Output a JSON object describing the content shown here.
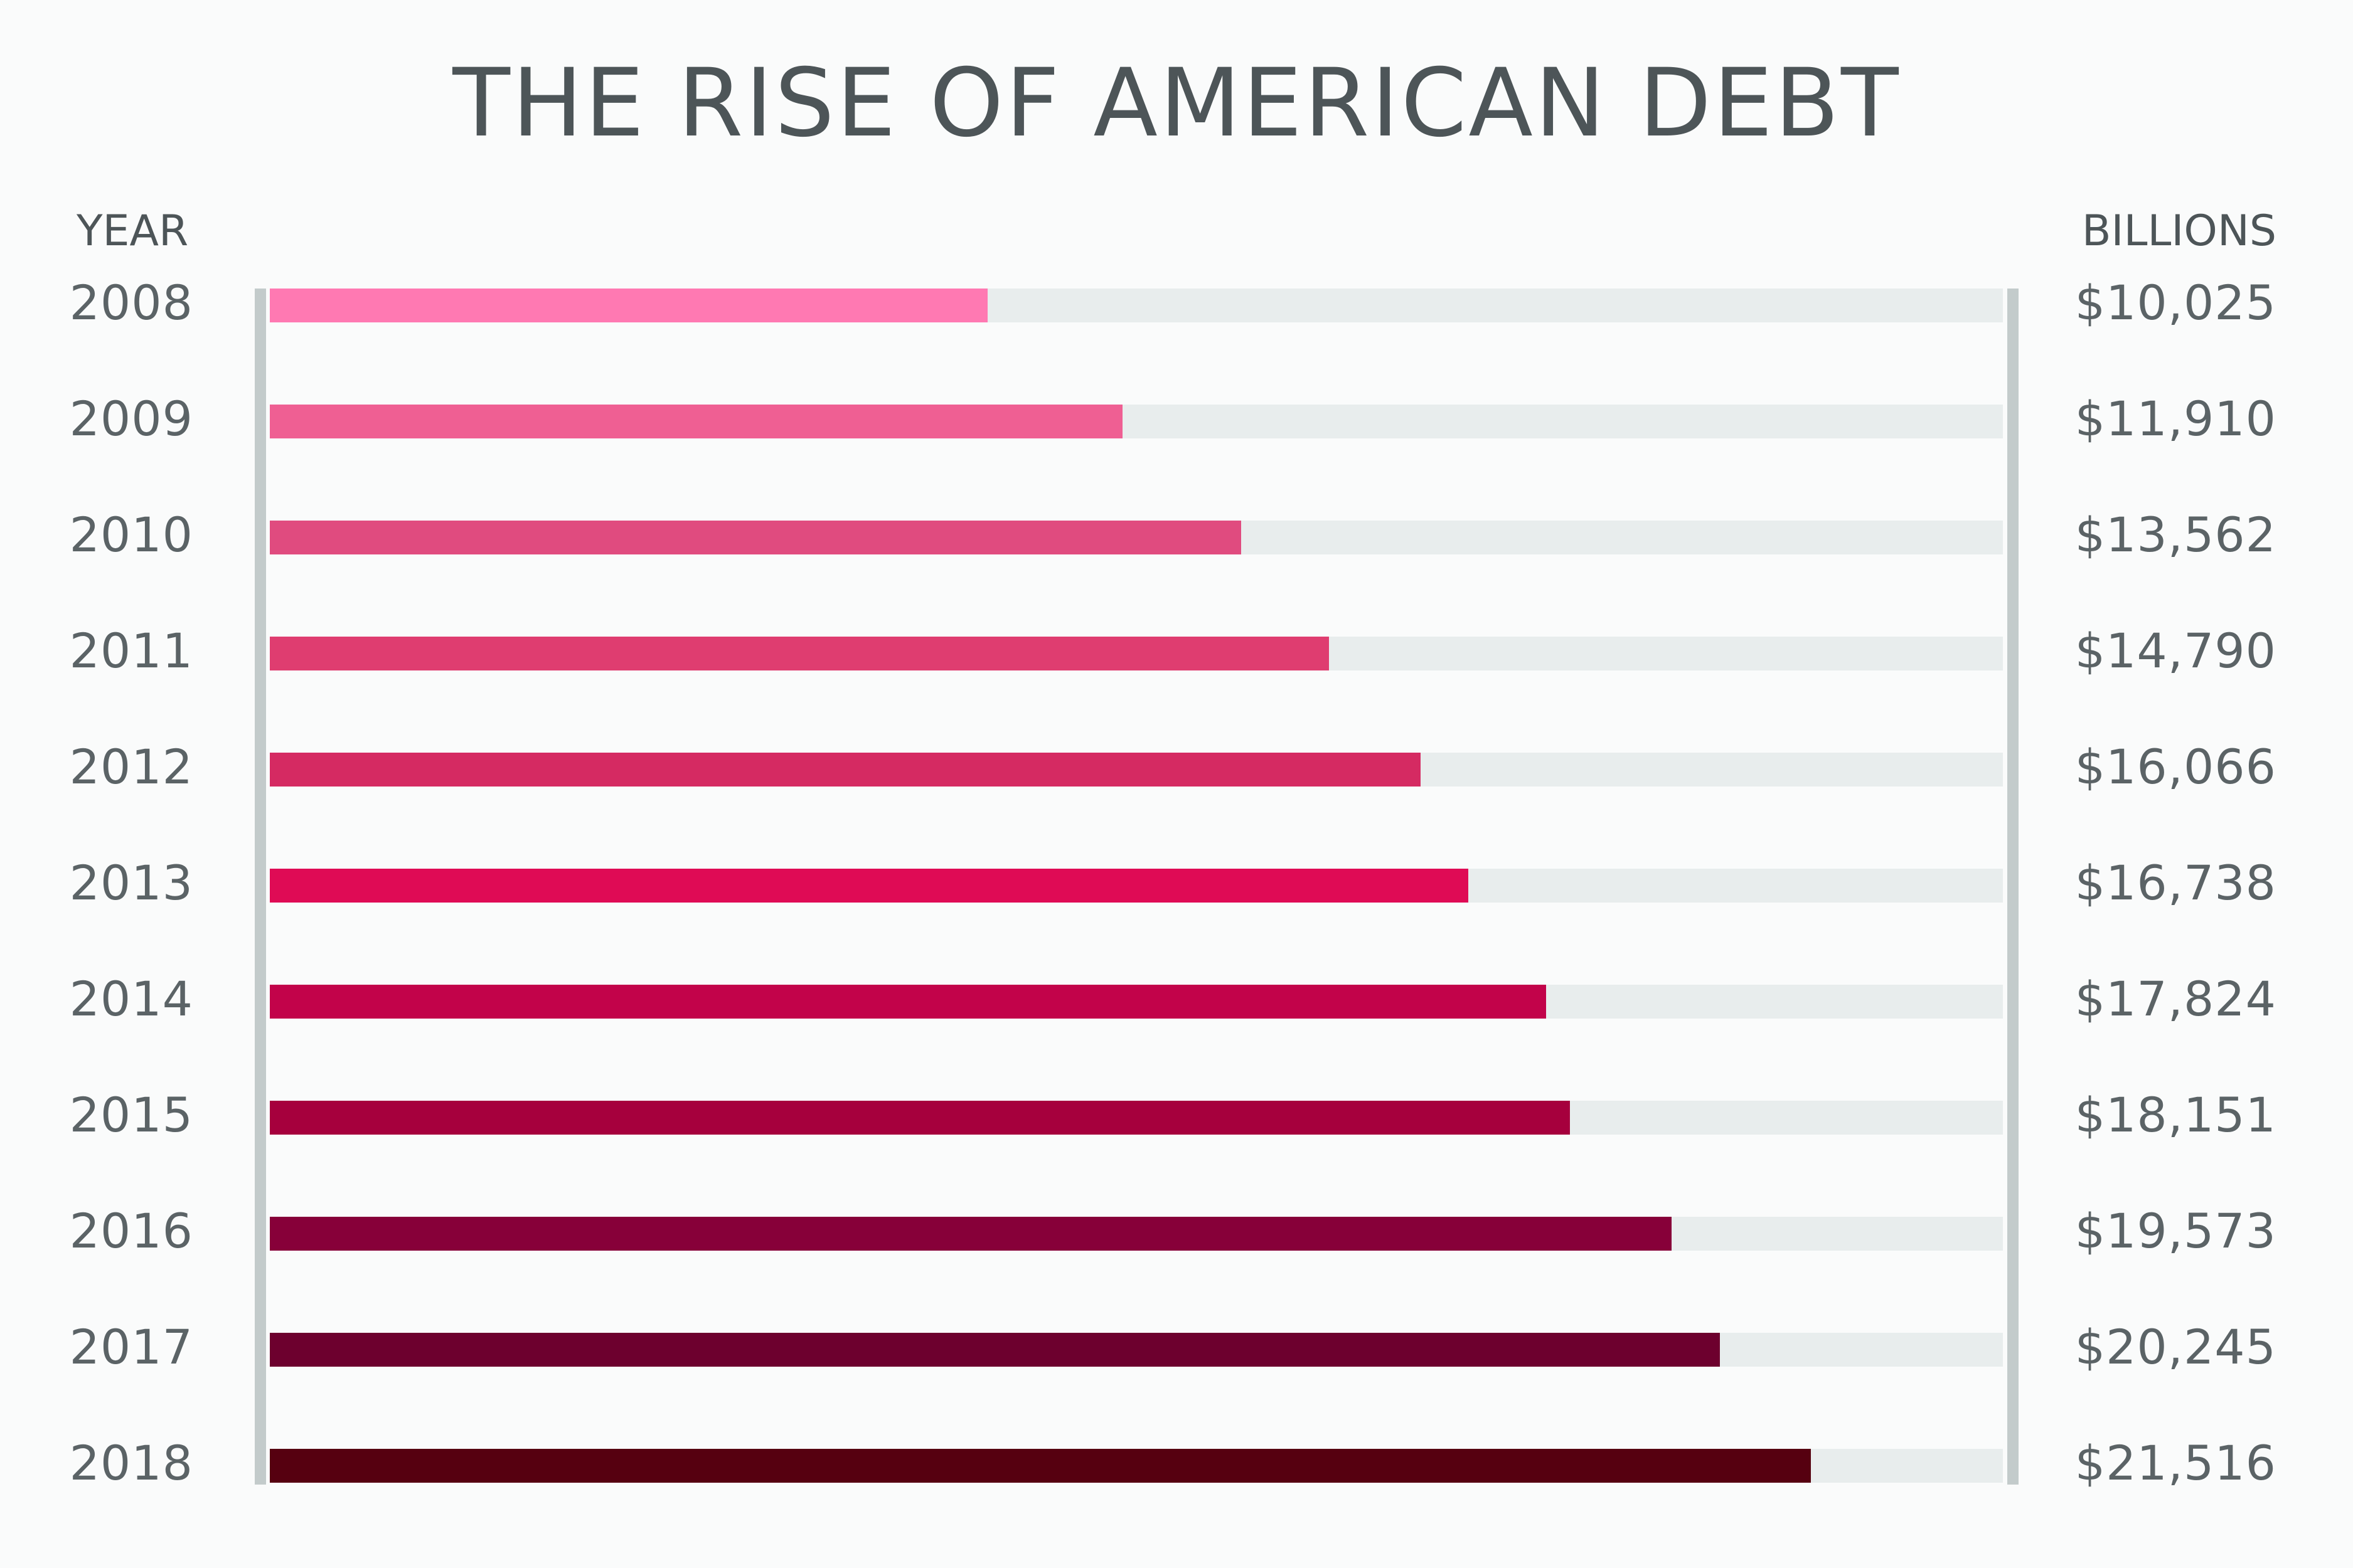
{
  "chart_data": {
    "type": "bar",
    "title": "THE RISE OF AMERICAN DEBT",
    "xlabel": "YEAR",
    "ylabel": "BILLIONS",
    "categories": [
      "2008",
      "2009",
      "2010",
      "2011",
      "2012",
      "2013",
      "2014",
      "2015",
      "2016",
      "2017",
      "2018"
    ],
    "values": [
      10025,
      11910,
      13562,
      14790,
      16066,
      16738,
      17824,
      18151,
      19573,
      20245,
      21516
    ],
    "value_labels": [
      "$10,025",
      "$11,910",
      "$13,562",
      "$14,790",
      "$16,066",
      "$16,738",
      "$17,824",
      "$18,151",
      "$19,573",
      "$20,245",
      "$21,516"
    ],
    "xlim": [
      0,
      24200
    ],
    "orientation": "horizontal",
    "grid": false,
    "bar_colors": [
      "#ff79b2",
      "#ef5f93",
      "#e04b7f",
      "#df3d70",
      "#d52a62",
      "#df0b55",
      "#c2034a",
      "#a6003d",
      "#870039",
      "#6d002e",
      "#560010"
    ],
    "track_color": "#e8eded"
  }
}
